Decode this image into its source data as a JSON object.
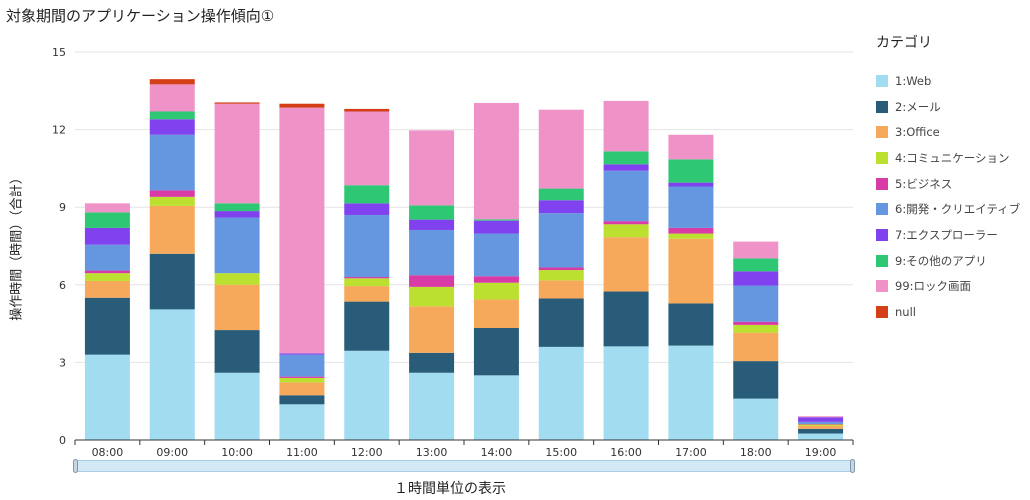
{
  "title": "対象期間のアプリケーション操作傾向①",
  "legend_title": "カテゴリ",
  "chart_data": {
    "type": "bar",
    "stacked": true,
    "categories": [
      "08:00",
      "09:00",
      "10:00",
      "11:00",
      "12:00",
      "13:00",
      "14:00",
      "15:00",
      "16:00",
      "17:00",
      "18:00",
      "19:00"
    ],
    "xlabel": "１時間単位の表示",
    "ylabel": "操作時間（時間）（合計）",
    "ylim": [
      0,
      15
    ],
    "yticks": [
      0,
      3,
      6,
      9,
      12,
      15
    ],
    "grid": true,
    "legend_position": "right",
    "series": [
      {
        "name": "1:Web",
        "color": "#a1dcf0",
        "values": [
          3.3,
          5.05,
          2.6,
          1.38,
          3.45,
          2.6,
          2.5,
          3.6,
          3.62,
          3.65,
          1.6,
          0.25
        ]
      },
      {
        "name": "2:メール",
        "color": "#285c78",
        "values": [
          2.2,
          2.15,
          1.65,
          0.35,
          1.9,
          0.77,
          1.83,
          1.87,
          2.12,
          1.63,
          1.45,
          0.18
        ]
      },
      {
        "name": "3:Office",
        "color": "#f6a95b",
        "values": [
          0.65,
          1.85,
          1.75,
          0.5,
          0.6,
          1.8,
          1.1,
          0.7,
          2.1,
          2.5,
          1.1,
          0.12
        ]
      },
      {
        "name": "4:コミュニケーション",
        "color": "#bce02f",
        "values": [
          0.3,
          0.35,
          0.45,
          0.17,
          0.3,
          0.75,
          0.65,
          0.4,
          0.5,
          0.2,
          0.3,
          0.05
        ]
      },
      {
        "name": "5:ビジネス",
        "color": "#d83aa6",
        "values": [
          0.1,
          0.25,
          0,
          0.05,
          0.05,
          0.45,
          0.25,
          0.1,
          0.12,
          0.22,
          0.12,
          0.02
        ]
      },
      {
        "name": "6:開発・クリエイティブ",
        "color": "#6596e0",
        "values": [
          1.0,
          2.15,
          2.15,
          0.85,
          2.4,
          1.75,
          1.65,
          2.1,
          1.95,
          1.6,
          1.4,
          0.08
        ]
      },
      {
        "name": "7:エクスプローラー",
        "color": "#8042ee",
        "values": [
          0.65,
          0.6,
          0.25,
          0.05,
          0.45,
          0.4,
          0.5,
          0.5,
          0.25,
          0.15,
          0.55,
          0.18
        ]
      },
      {
        "name": "9:その他のアプリ",
        "color": "#2ec874",
        "values": [
          0.6,
          0.3,
          0.3,
          0,
          0.7,
          0.55,
          0.05,
          0.45,
          0.5,
          0.9,
          0.5,
          0
        ]
      },
      {
        "name": "99:ロック画面",
        "color": "#ee92c7",
        "values": [
          0.35,
          1.05,
          3.85,
          9.5,
          2.85,
          2.9,
          4.5,
          3.05,
          1.95,
          0.95,
          0.65,
          0.04
        ]
      },
      {
        "name": "null",
        "color": "#d43f18",
        "values": [
          0,
          0.2,
          0.05,
          0.15,
          0.1,
          0,
          0,
          0,
          0,
          0,
          0,
          0
        ]
      }
    ]
  }
}
